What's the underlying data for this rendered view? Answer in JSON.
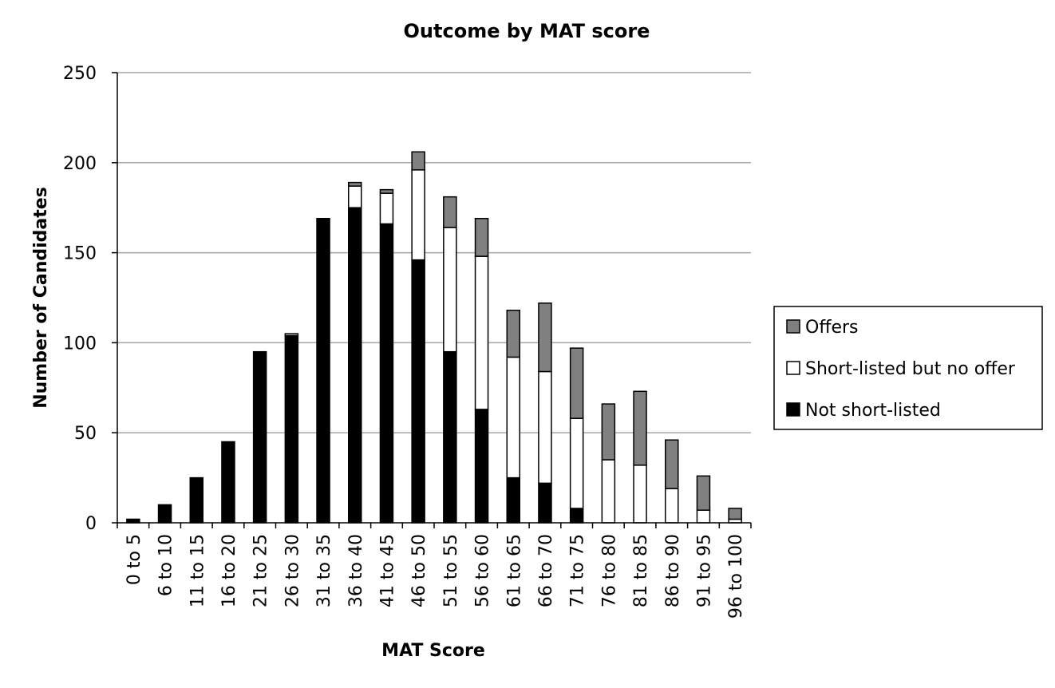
{
  "chart_data": {
    "type": "bar",
    "stacked": true,
    "title": "Outcome by MAT score",
    "xlabel": "MAT Score",
    "ylabel": "Number of Candidates",
    "ylim": [
      0,
      250
    ],
    "yticks": [
      0,
      50,
      100,
      150,
      200,
      250
    ],
    "grid": true,
    "legend_position": "right",
    "categories": [
      "0 to 5",
      "6 to 10",
      "11 to 15",
      "16 to 20",
      "21 to 25",
      "26 to 30",
      "31 to 35",
      "36 to 40",
      "41 to 45",
      "46 to 50",
      "51 to 55",
      "56 to 60",
      "61 to 65",
      "66 to 70",
      "71 to 75",
      "76 to 80",
      "81 to 85",
      "86 to 90",
      "91 to 95",
      "96 to 100"
    ],
    "series": [
      {
        "name": "Not short-listed",
        "color": "#000000",
        "values": [
          2,
          10,
          25,
          45,
          95,
          104,
          169,
          175,
          166,
          146,
          95,
          63,
          25,
          22,
          8,
          0,
          0,
          0,
          0,
          0
        ]
      },
      {
        "name": "Short-listed but no offer",
        "color": "#ffffff",
        "values": [
          0,
          0,
          0,
          0,
          0,
          1,
          0,
          12,
          17,
          50,
          69,
          85,
          67,
          62,
          50,
          35,
          32,
          19,
          7,
          2
        ]
      },
      {
        "name": "Offers",
        "color": "#808080",
        "values": [
          0,
          0,
          0,
          0,
          0,
          0,
          0,
          2,
          2,
          10,
          17,
          21,
          26,
          38,
          39,
          31,
          41,
          27,
          19,
          6
        ]
      }
    ],
    "legend_order": [
      "Offers",
      "Short-listed but no offer",
      "Not short-listed"
    ]
  }
}
